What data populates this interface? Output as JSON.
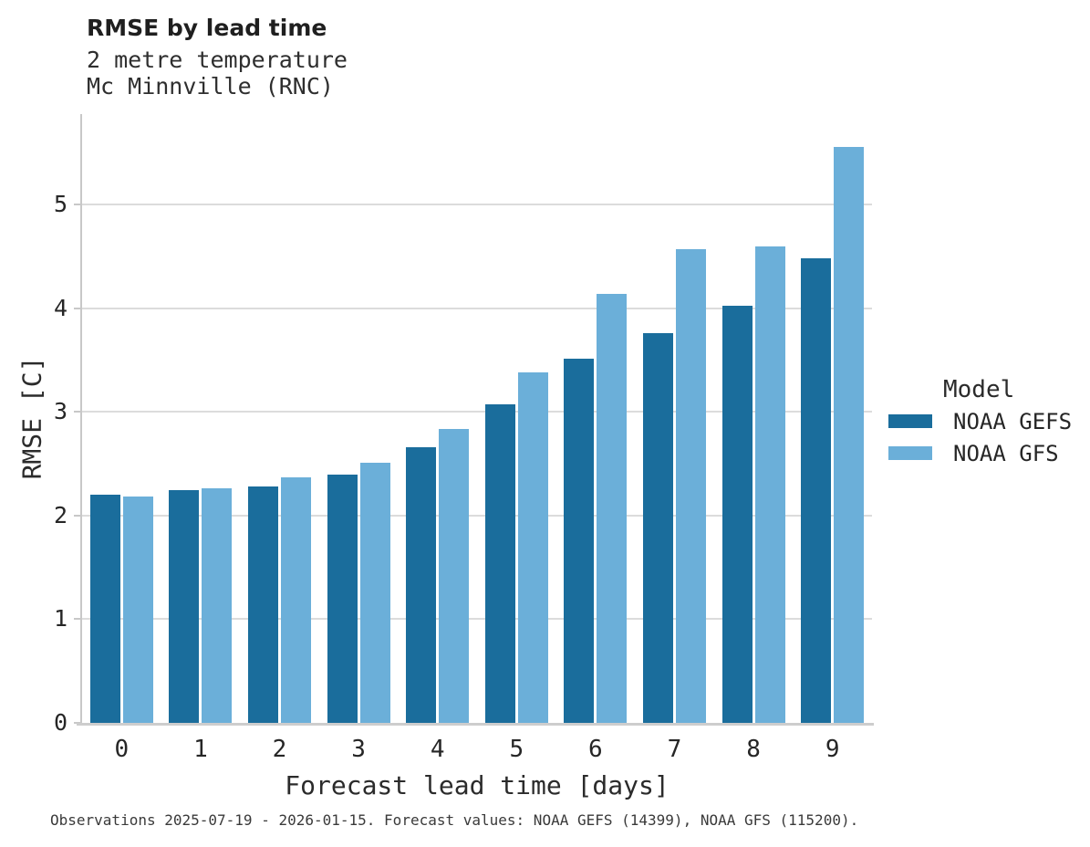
{
  "chart_data": {
    "type": "bar",
    "title": "RMSE by lead time",
    "subtitle_lines": [
      "2 metre temperature",
      "Mc Minnville (RNC)"
    ],
    "xlabel": "Forecast lead time [days]",
    "ylabel": "RMSE [C]",
    "categories": [
      "0",
      "1",
      "2",
      "3",
      "4",
      "5",
      "6",
      "7",
      "8",
      "9"
    ],
    "series": [
      {
        "name": "NOAA GEFS",
        "color": "#1a6d9c",
        "values": [
          2.2,
          2.24,
          2.28,
          2.39,
          2.66,
          3.07,
          3.51,
          3.76,
          4.02,
          4.48
        ]
      },
      {
        "name": "NOAA GFS",
        "color": "#6bafd9",
        "values": [
          2.18,
          2.26,
          2.37,
          2.51,
          2.83,
          3.38,
          4.14,
          4.57,
          4.59,
          5.55
        ]
      }
    ],
    "yticks": [
      0,
      1,
      2,
      3,
      4,
      5
    ],
    "ylim": [
      0,
      5.87
    ],
    "grid": "horizontal",
    "legend": {
      "title": "Model",
      "position": "right"
    }
  },
  "footer": {
    "text": "Observations 2025-07-19 - 2026-01-15. Forecast values: NOAA GEFS (14399), NOAA GFS (115200)."
  },
  "colors": {
    "grid": "#dcdcdc",
    "spine": "#c8c8c8",
    "baseline": "#cdcdcd",
    "title_text": "#1f1f1f",
    "tick_text": "#262626"
  }
}
